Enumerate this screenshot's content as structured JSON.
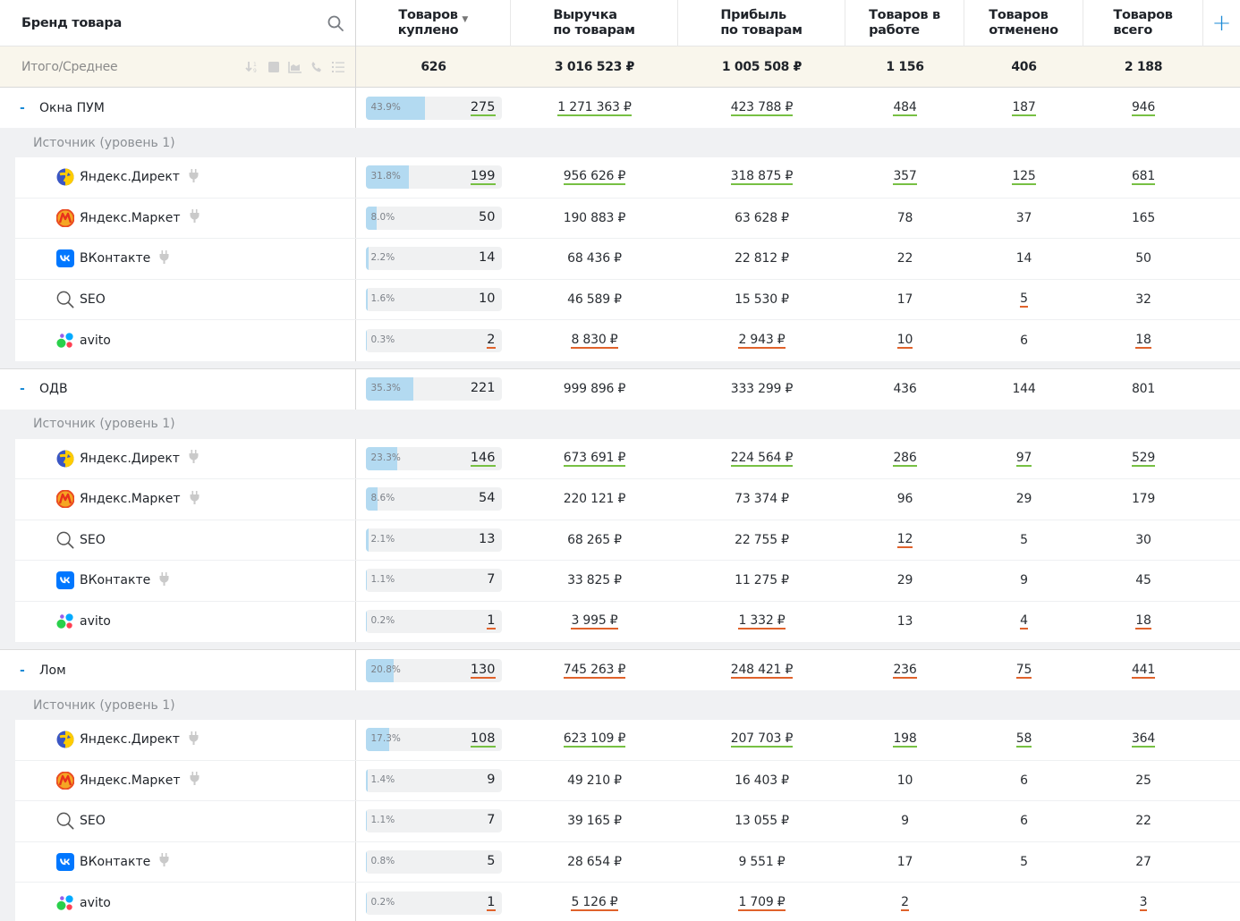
{
  "header": {
    "first_col": "Бренд товара",
    "columns": [
      {
        "label": "Товаров\nкуплено",
        "sorted": "desc"
      },
      {
        "label": "Выручка\nпо товарам"
      },
      {
        "label": "Прибыль\nпо товарам"
      },
      {
        "label": "Товаров в\nработе"
      },
      {
        "label": "Товаров\nотменено"
      },
      {
        "label": "Товаров\nвсего"
      }
    ],
    "add_label": "+"
  },
  "totals": {
    "label": "Итого/Среднее",
    "tools": [
      "sort-numeric-icon",
      "square-icon",
      "area-chart-icon",
      "phone-icon",
      "list-icon"
    ],
    "values": [
      "626",
      "3 016 523 ₽",
      "1 005 508 ₽",
      "1 156",
      "406",
      "2 188"
    ]
  },
  "colors": {
    "accent": "#1a8ad6",
    "bar_fill": "#b3daf1",
    "good": "#77c043",
    "bad": "#e0622b",
    "totals_bg": "#f9f6ec"
  },
  "groups": [
    {
      "name": "Окна ПУМ",
      "collapse": "-",
      "pct": "43.9%",
      "bought": "275",
      "bought_mark": "g",
      "cells": [
        {
          "v": "1 271 363 ₽",
          "m": "g"
        },
        {
          "v": "423 788 ₽",
          "m": "g"
        },
        {
          "v": "484",
          "m": "g"
        },
        {
          "v": "187",
          "m": "g"
        },
        {
          "v": "946",
          "m": "g"
        }
      ],
      "sub_label": "Источник (уровень 1)",
      "children": [
        {
          "name": "Яндекс.Директ",
          "icon": "yandex-direct",
          "plug": true,
          "pct": "31.8%",
          "bought": "199",
          "bought_mark": "g",
          "cells": [
            {
              "v": "956 626 ₽",
              "m": "g"
            },
            {
              "v": "318 875 ₽",
              "m": "g"
            },
            {
              "v": "357",
              "m": "g"
            },
            {
              "v": "125",
              "m": "g"
            },
            {
              "v": "681",
              "m": "g"
            }
          ]
        },
        {
          "name": "Яндекс.Маркет",
          "icon": "yandex-market",
          "plug": true,
          "pct": "8.0%",
          "bought": "50",
          "bought_mark": "",
          "cells": [
            {
              "v": "190 883 ₽",
              "m": ""
            },
            {
              "v": "63 628 ₽",
              "m": ""
            },
            {
              "v": "78",
              "m": ""
            },
            {
              "v": "37",
              "m": ""
            },
            {
              "v": "165",
              "m": ""
            }
          ]
        },
        {
          "name": "ВКонтакте",
          "icon": "vk",
          "plug": true,
          "pct": "2.2%",
          "bought": "14",
          "bought_mark": "",
          "cells": [
            {
              "v": "68 436 ₽",
              "m": ""
            },
            {
              "v": "22 812 ₽",
              "m": ""
            },
            {
              "v": "22",
              "m": ""
            },
            {
              "v": "14",
              "m": ""
            },
            {
              "v": "50",
              "m": ""
            }
          ]
        },
        {
          "name": "SEO",
          "icon": "seo",
          "plug": false,
          "pct": "1.6%",
          "bought": "10",
          "bought_mark": "",
          "cells": [
            {
              "v": "46 589 ₽",
              "m": ""
            },
            {
              "v": "15 530 ₽",
              "m": ""
            },
            {
              "v": "17",
              "m": ""
            },
            {
              "v": "5",
              "m": "o"
            },
            {
              "v": "32",
              "m": ""
            }
          ]
        },
        {
          "name": "avito",
          "icon": "avito",
          "plug": false,
          "pct": "0.3%",
          "bought": "2",
          "bought_mark": "o",
          "cells": [
            {
              "v": "8 830 ₽",
              "m": "o"
            },
            {
              "v": "2 943 ₽",
              "m": "o"
            },
            {
              "v": "10",
              "m": "o"
            },
            {
              "v": "6",
              "m": ""
            },
            {
              "v": "18",
              "m": "o"
            }
          ]
        }
      ]
    },
    {
      "name": "ОДВ",
      "collapse": "-",
      "pct": "35.3%",
      "bought": "221",
      "bought_mark": "",
      "cells": [
        {
          "v": "999 896 ₽",
          "m": ""
        },
        {
          "v": "333 299 ₽",
          "m": ""
        },
        {
          "v": "436",
          "m": ""
        },
        {
          "v": "144",
          "m": ""
        },
        {
          "v": "801",
          "m": ""
        }
      ],
      "sub_label": "Источник (уровень 1)",
      "children": [
        {
          "name": "Яндекс.Директ",
          "icon": "yandex-direct",
          "plug": true,
          "pct": "23.3%",
          "bought": "146",
          "bought_mark": "g",
          "cells": [
            {
              "v": "673 691 ₽",
              "m": "g"
            },
            {
              "v": "224 564 ₽",
              "m": "g"
            },
            {
              "v": "286",
              "m": "g"
            },
            {
              "v": "97",
              "m": "g"
            },
            {
              "v": "529",
              "m": "g"
            }
          ]
        },
        {
          "name": "Яндекс.Маркет",
          "icon": "yandex-market",
          "plug": true,
          "pct": "8.6%",
          "bought": "54",
          "bought_mark": "",
          "cells": [
            {
              "v": "220 121 ₽",
              "m": ""
            },
            {
              "v": "73 374 ₽",
              "m": ""
            },
            {
              "v": "96",
              "m": ""
            },
            {
              "v": "29",
              "m": ""
            },
            {
              "v": "179",
              "m": ""
            }
          ]
        },
        {
          "name": "SEO",
          "icon": "seo",
          "plug": false,
          "pct": "2.1%",
          "bought": "13",
          "bought_mark": "",
          "cells": [
            {
              "v": "68 265 ₽",
              "m": ""
            },
            {
              "v": "22 755 ₽",
              "m": ""
            },
            {
              "v": "12",
              "m": "o"
            },
            {
              "v": "5",
              "m": ""
            },
            {
              "v": "30",
              "m": ""
            }
          ]
        },
        {
          "name": "ВКонтакте",
          "icon": "vk",
          "plug": true,
          "pct": "1.1%",
          "bought": "7",
          "bought_mark": "",
          "cells": [
            {
              "v": "33 825 ₽",
              "m": ""
            },
            {
              "v": "11 275 ₽",
              "m": ""
            },
            {
              "v": "29",
              "m": ""
            },
            {
              "v": "9",
              "m": ""
            },
            {
              "v": "45",
              "m": ""
            }
          ]
        },
        {
          "name": "avito",
          "icon": "avito",
          "plug": false,
          "pct": "0.2%",
          "bought": "1",
          "bought_mark": "o",
          "cells": [
            {
              "v": "3 995 ₽",
              "m": "o"
            },
            {
              "v": "1 332 ₽",
              "m": "o"
            },
            {
              "v": "13",
              "m": ""
            },
            {
              "v": "4",
              "m": "o"
            },
            {
              "v": "18",
              "m": "o"
            }
          ]
        }
      ]
    },
    {
      "name": "Лом",
      "collapse": "-",
      "pct": "20.8%",
      "bought": "130",
      "bought_mark": "o",
      "cells": [
        {
          "v": "745 263 ₽",
          "m": "o"
        },
        {
          "v": "248 421 ₽",
          "m": "o"
        },
        {
          "v": "236",
          "m": "o"
        },
        {
          "v": "75",
          "m": "o"
        },
        {
          "v": "441",
          "m": "o"
        }
      ],
      "sub_label": "Источник (уровень 1)",
      "children": [
        {
          "name": "Яндекс.Директ",
          "icon": "yandex-direct",
          "plug": true,
          "pct": "17.3%",
          "bought": "108",
          "bought_mark": "g",
          "cells": [
            {
              "v": "623 109 ₽",
              "m": "g"
            },
            {
              "v": "207 703 ₽",
              "m": "g"
            },
            {
              "v": "198",
              "m": "g"
            },
            {
              "v": "58",
              "m": "g"
            },
            {
              "v": "364",
              "m": "g"
            }
          ]
        },
        {
          "name": "Яндекс.Маркет",
          "icon": "yandex-market",
          "plug": true,
          "pct": "1.4%",
          "bought": "9",
          "bought_mark": "",
          "cells": [
            {
              "v": "49 210 ₽",
              "m": ""
            },
            {
              "v": "16 403 ₽",
              "m": ""
            },
            {
              "v": "10",
              "m": ""
            },
            {
              "v": "6",
              "m": ""
            },
            {
              "v": "25",
              "m": ""
            }
          ]
        },
        {
          "name": "SEO",
          "icon": "seo",
          "plug": false,
          "pct": "1.1%",
          "bought": "7",
          "bought_mark": "",
          "cells": [
            {
              "v": "39 165 ₽",
              "m": ""
            },
            {
              "v": "13 055 ₽",
              "m": ""
            },
            {
              "v": "9",
              "m": ""
            },
            {
              "v": "6",
              "m": ""
            },
            {
              "v": "22",
              "m": ""
            }
          ]
        },
        {
          "name": "ВКонтакте",
          "icon": "vk",
          "plug": true,
          "pct": "0.8%",
          "bought": "5",
          "bought_mark": "",
          "cells": [
            {
              "v": "28 654 ₽",
              "m": ""
            },
            {
              "v": "9 551 ₽",
              "m": ""
            },
            {
              "v": "17",
              "m": ""
            },
            {
              "v": "5",
              "m": ""
            },
            {
              "v": "27",
              "m": ""
            }
          ]
        },
        {
          "name": "avito",
          "icon": "avito",
          "plug": false,
          "pct": "0.2%",
          "bought": "1",
          "bought_mark": "o",
          "cells": [
            {
              "v": "5 126 ₽",
              "m": "o"
            },
            {
              "v": "1 709 ₽",
              "m": "o"
            },
            {
              "v": "2",
              "m": "o"
            },
            {
              "v": "",
              "m": ""
            },
            {
              "v": "3",
              "m": "o"
            }
          ]
        }
      ]
    }
  ]
}
